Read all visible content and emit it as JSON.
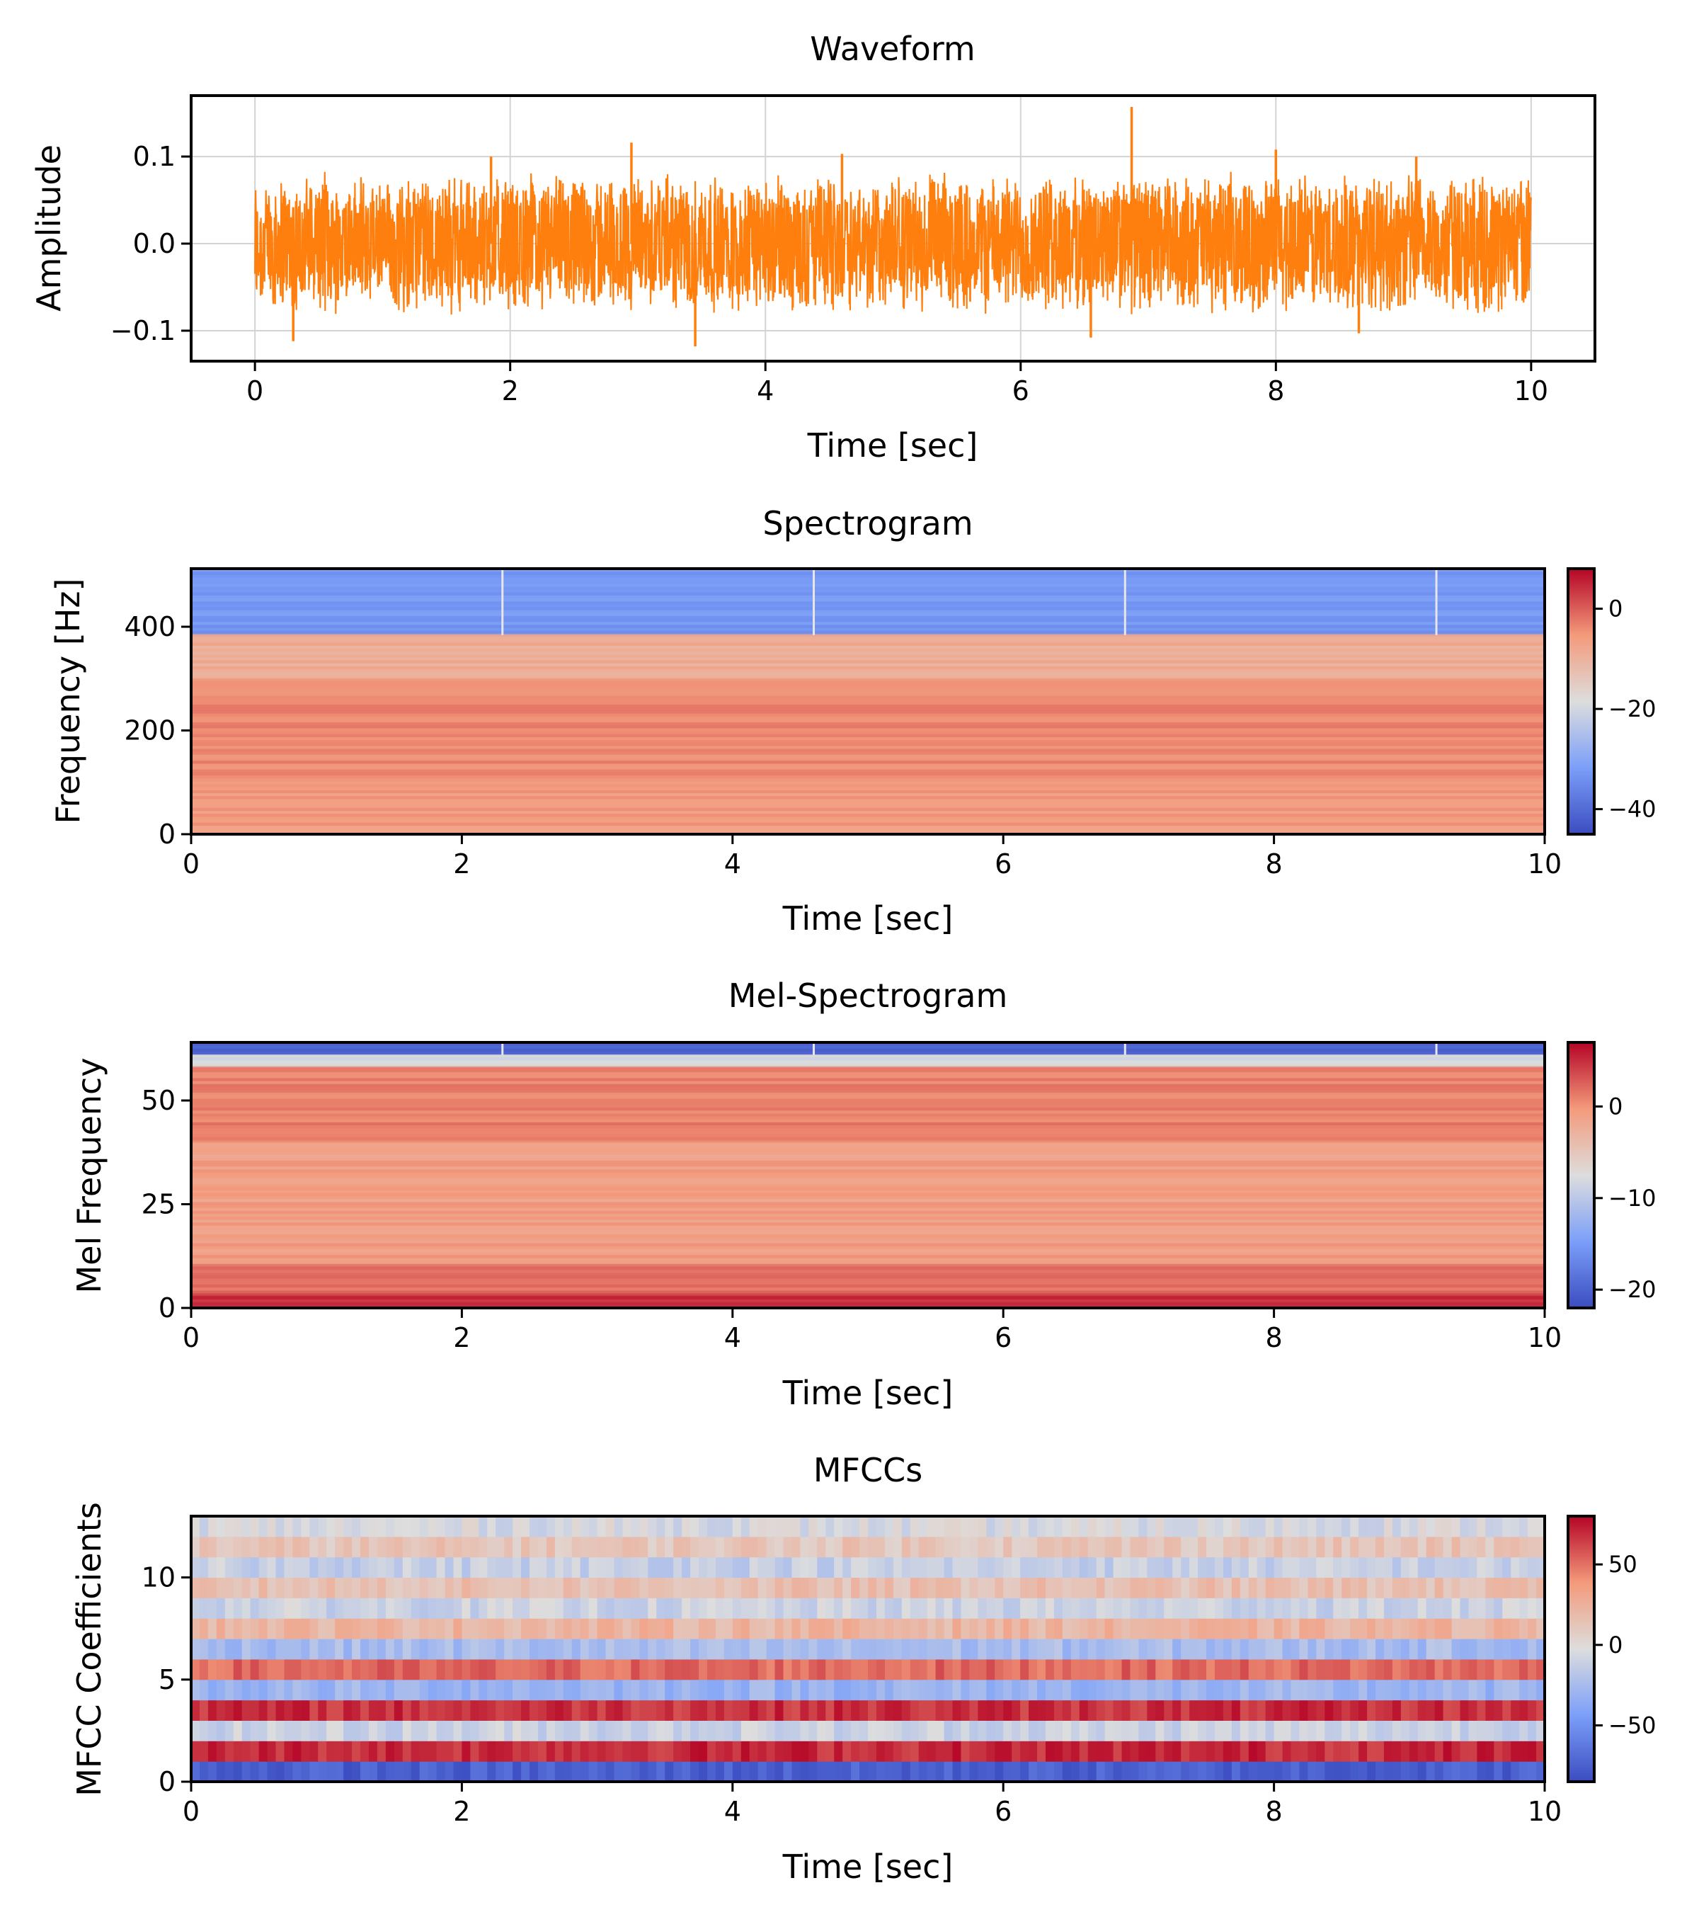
{
  "colormap": {
    "name": "coolwarm",
    "low": "#3b4cc0",
    "mid": "#dddddd",
    "high": "#b40426"
  },
  "chart_data": [
    {
      "type": "line",
      "title": "Waveform",
      "xlabel": "Time [sec]",
      "ylabel": "Amplitude",
      "xlim": [
        -0.5,
        10.5
      ],
      "ylim": [
        -0.135,
        0.17
      ],
      "xticks": [
        0,
        2,
        4,
        6,
        8,
        10
      ],
      "xtick_labels": [
        "0",
        "2",
        "4",
        "6",
        "8",
        "10"
      ],
      "yticks": [
        -0.1,
        0.0,
        0.1
      ],
      "ytick_labels": [
        "−0.1",
        "0.0",
        "0.1"
      ],
      "grid": true,
      "line_color": "#ff7f0e",
      "duration": 10,
      "envelope_max": 0.085,
      "envelope_min": -0.08,
      "spikes": [
        {
          "x": 0.3,
          "y": -0.112
        },
        {
          "x": 1.85,
          "y": 0.1
        },
        {
          "x": 2.95,
          "y": 0.116
        },
        {
          "x": 3.45,
          "y": -0.118
        },
        {
          "x": 4.6,
          "y": 0.103
        },
        {
          "x": 6.55,
          "y": -0.108
        },
        {
          "x": 6.87,
          "y": 0.157
        },
        {
          "x": 8.0,
          "y": 0.108
        },
        {
          "x": 8.65,
          "y": -0.103
        },
        {
          "x": 9.1,
          "y": 0.1
        }
      ]
    },
    {
      "type": "heatmap",
      "title": "Spectrogram",
      "xlabel": "Time [sec]",
      "ylabel": "Frequency [Hz]",
      "xlim": [
        0,
        10
      ],
      "ylim": [
        0,
        512
      ],
      "xticks": [
        0,
        2,
        4,
        6,
        8,
        10
      ],
      "xtick_labels": [
        "0",
        "2",
        "4",
        "6",
        "8",
        "10"
      ],
      "yticks": [
        0,
        200,
        400
      ],
      "ytick_labels": [
        "0",
        "200",
        "400"
      ],
      "colorbar": {
        "vmin": -45,
        "vmax": 8,
        "ticks": [
          0,
          -20,
          -40
        ],
        "tick_labels": [
          "0",
          "−20",
          "−40"
        ]
      },
      "bands": [
        {
          "from": 384,
          "to": 512,
          "value": -33
        },
        {
          "from": 300,
          "to": 384,
          "value": -9
        },
        {
          "from": 100,
          "to": 300,
          "value": -4
        },
        {
          "from": 0,
          "to": 100,
          "value": -6
        }
      ],
      "vertical_lines": [
        2.3,
        4.6,
        6.9,
        9.2
      ]
    },
    {
      "type": "heatmap",
      "title": "Mel-Spectrogram",
      "xlabel": "Time [sec]",
      "ylabel": "Mel Frequency",
      "xlim": [
        0,
        10
      ],
      "ylim": [
        0,
        64
      ],
      "xticks": [
        0,
        2,
        4,
        6,
        8,
        10
      ],
      "xtick_labels": [
        "0",
        "2",
        "4",
        "6",
        "8",
        "10"
      ],
      "yticks": [
        0,
        25,
        50
      ],
      "ytick_labels": [
        "0",
        "25",
        "50"
      ],
      "colorbar": {
        "vmin": -22,
        "vmax": 7,
        "ticks": [
          0,
          -10,
          -20
        ],
        "tick_labels": [
          "0",
          "−10",
          "−20"
        ]
      },
      "bands": [
        {
          "from": 61,
          "to": 64,
          "value": -20
        },
        {
          "from": 58,
          "to": 61,
          "value": -8
        },
        {
          "from": 40,
          "to": 58,
          "value": 1
        },
        {
          "from": 10,
          "to": 40,
          "value": -1
        },
        {
          "from": 3,
          "to": 10,
          "value": 2
        },
        {
          "from": 0,
          "to": 3,
          "value": 5
        }
      ],
      "vertical_lines": [
        2.3,
        4.6,
        6.9,
        9.2
      ]
    },
    {
      "type": "heatmap",
      "title": "MFCCs",
      "xlabel": "Time [sec]",
      "ylabel": "MFCC Coefficients",
      "xlim": [
        0,
        10
      ],
      "ylim": [
        0,
        13
      ],
      "xticks": [
        0,
        2,
        4,
        6,
        8,
        10
      ],
      "xtick_labels": [
        "0",
        "2",
        "4",
        "6",
        "8",
        "10"
      ],
      "yticks": [
        0,
        5,
        10
      ],
      "ytick_labels": [
        "0",
        "5",
        "10"
      ],
      "colorbar": {
        "vmin": -85,
        "vmax": 80,
        "ticks": [
          50,
          0,
          -50
        ],
        "tick_labels": [
          "50",
          "0",
          "−50"
        ]
      },
      "coefficients": [
        -75,
        70,
        -10,
        68,
        -30,
        52,
        -25,
        22,
        -10,
        15,
        -12,
        12,
        -5
      ]
    }
  ]
}
